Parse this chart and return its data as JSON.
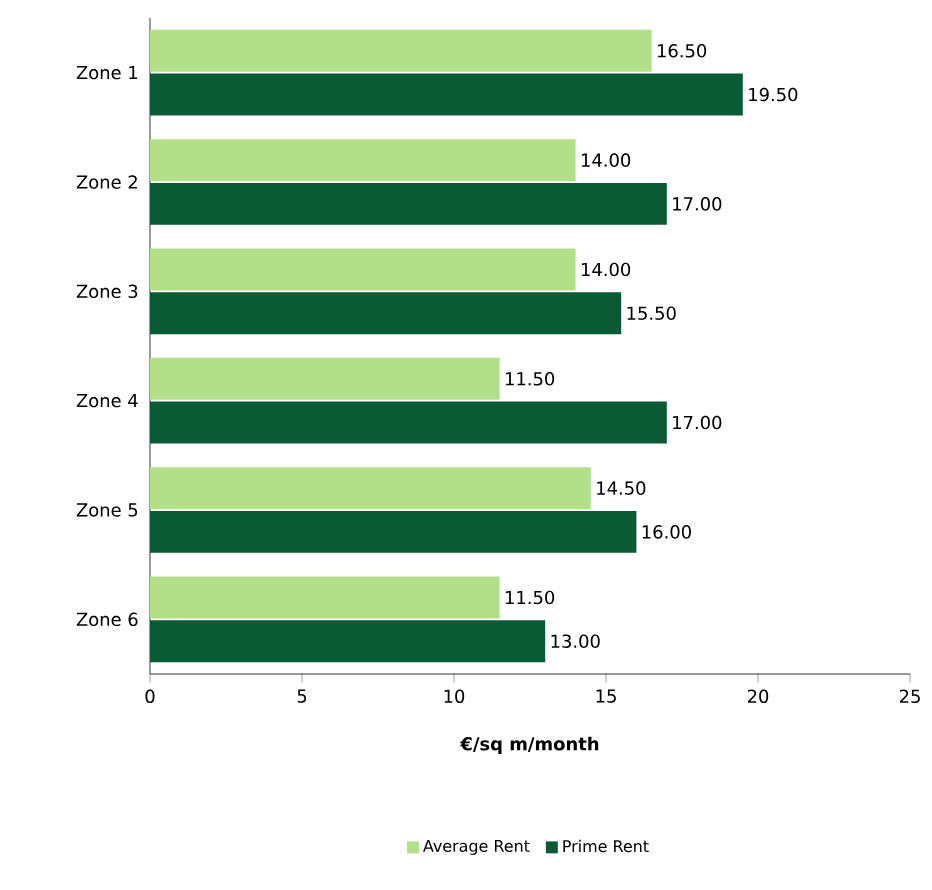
{
  "chart_data": {
    "type": "bar",
    "orientation": "horizontal",
    "xlabel": "**€/sq m/month**",
    "categories": [
      "Zone 1",
      "Zone 2",
      "Zone 3",
      "Zone 4",
      "Zone 5",
      "Zone 6"
    ],
    "series": [
      {
        "name": "Average Rent",
        "color": "#b3de8a",
        "values": [
          16.5,
          14.0,
          14.0,
          11.5,
          14.5,
          11.5
        ],
        "value_labels": [
          "16.50",
          "14.00",
          "14.00",
          "11.50",
          "14.50",
          "11.50"
        ]
      },
      {
        "name": "Prime Rent",
        "color": "#0b5a36",
        "values": [
          19.5,
          17.0,
          15.5,
          17.0,
          16.0,
          13.0
        ],
        "value_labels": [
          "19.50",
          "17.00",
          "15.50",
          "17.00",
          "16.00",
          "13.00"
        ]
      }
    ],
    "xlim": [
      0,
      25
    ],
    "xticks": [
      0,
      5,
      10,
      15,
      20,
      25
    ],
    "legend": "bottom"
  }
}
